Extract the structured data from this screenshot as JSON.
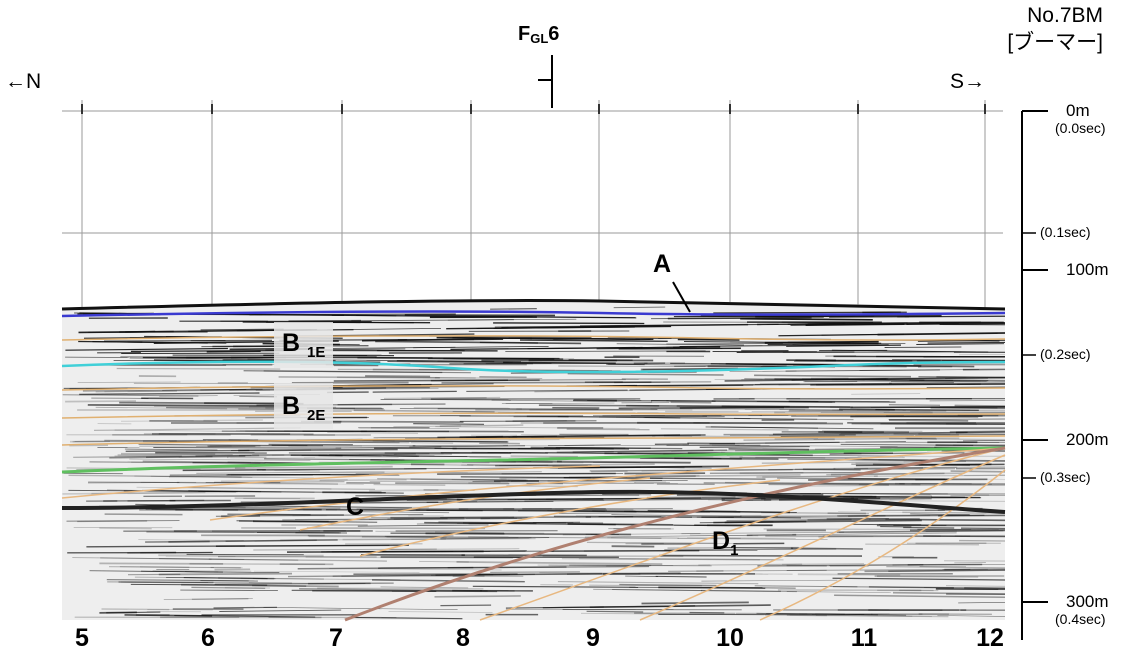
{
  "title": {
    "line_name": "No.7BM",
    "method": "[ブーマー]"
  },
  "directions": {
    "left": "←N",
    "right": "S→"
  },
  "fault": {
    "name": "F",
    "subscript": "GL",
    "number": "6"
  },
  "distance_ticks": [
    "5",
    "6",
    "7",
    "8",
    "9",
    "10",
    "11",
    "12"
  ],
  "depth_scale": {
    "marks": [
      {
        "meters": "0m",
        "seconds": "(0.0sec)"
      },
      {
        "seconds": "(0.1sec)"
      },
      {
        "meters": "100m"
      },
      {
        "seconds": "(0.2sec)"
      },
      {
        "meters": "200m"
      },
      {
        "seconds": "(0.3sec)"
      },
      {
        "meters": "300m",
        "seconds": "(0.4sec)"
      }
    ]
  },
  "units": {
    "A": "A",
    "B1E_main": "B",
    "B1E_sub": "1E",
    "B2E_main": "B",
    "B2E_sub": "2E",
    "C": "C",
    "D1_main": "D",
    "D1_sub": "1"
  },
  "horizon_colors": {
    "A": "#3a3ad0",
    "B1E": "#40d0d8",
    "C": "#5fbf5f",
    "D": "#b08070",
    "B_minor": "#e0b070"
  }
}
